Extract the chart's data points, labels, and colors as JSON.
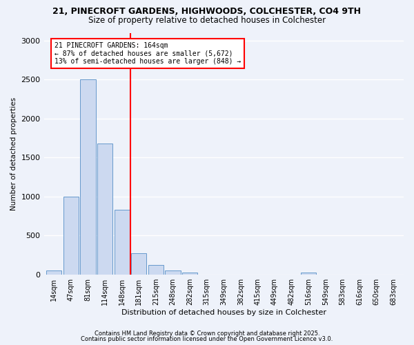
{
  "title1": "21, PINECROFT GARDENS, HIGHWOODS, COLCHESTER, CO4 9TH",
  "title2": "Size of property relative to detached houses in Colchester",
  "xlabel": "Distribution of detached houses by size in Colchester",
  "ylabel": "Number of detached properties",
  "categories": [
    "14sqm",
    "47sqm",
    "81sqm",
    "114sqm",
    "148sqm",
    "181sqm",
    "215sqm",
    "248sqm",
    "282sqm",
    "315sqm",
    "349sqm",
    "382sqm",
    "415sqm",
    "449sqm",
    "482sqm",
    "516sqm",
    "549sqm",
    "583sqm",
    "616sqm",
    "650sqm",
    "683sqm"
  ],
  "values": [
    50,
    1000,
    2500,
    1680,
    830,
    270,
    120,
    50,
    25,
    0,
    0,
    0,
    0,
    0,
    0,
    20,
    0,
    0,
    0,
    0,
    0
  ],
  "bar_color": "#ccd9f0",
  "bar_edge_color": "#6699cc",
  "vline_color": "red",
  "annotation_title": "21 PINECROFT GARDENS: 164sqm",
  "annotation_line1": "← 87% of detached houses are smaller (5,672)",
  "annotation_line2": "13% of semi-detached houses are larger (848) →",
  "ylim": [
    0,
    3100
  ],
  "footer1": "Contains HM Land Registry data © Crown copyright and database right 2025.",
  "footer2": "Contains public sector information licensed under the Open Government Licence v3.0.",
  "bg_color": "#eef2fa",
  "grid_color": "#ffffff",
  "title_fontsize": 9,
  "subtitle_fontsize": 8.5
}
